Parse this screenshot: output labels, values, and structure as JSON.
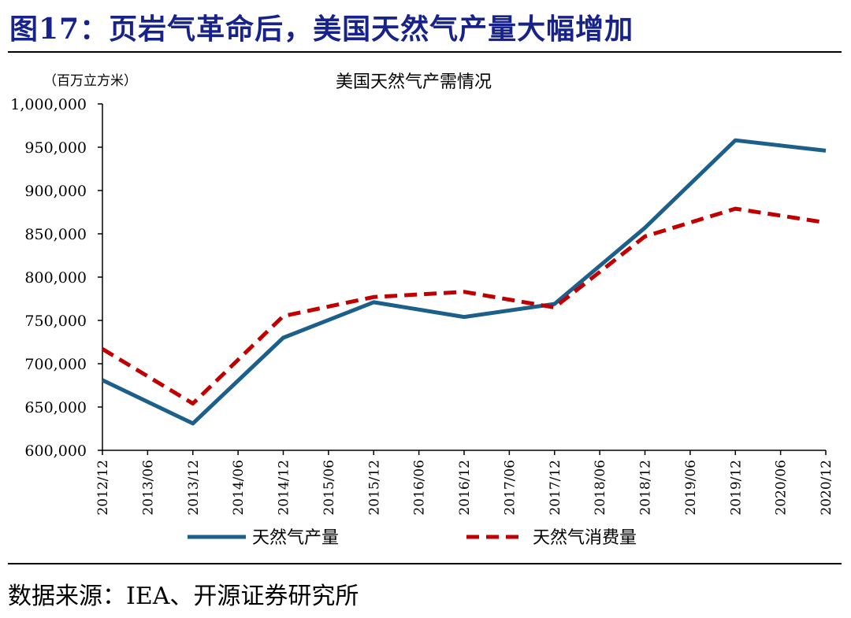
{
  "figure": {
    "title": "图17：页岩气革命后，美国天然气产量大幅增加",
    "source": "数据来源：IEA、开源证券研究所"
  },
  "colors": {
    "title": "#17238a",
    "production": "#1b5f8a",
    "consumption": "#c00000"
  },
  "chart_data": {
    "type": "line",
    "title": "美国天然气产需情况",
    "unit_label": "（百万立方米）",
    "x": [
      "2012/12",
      "2013/06",
      "2013/12",
      "2014/06",
      "2014/12",
      "2015/06",
      "2015/12",
      "2016/06",
      "2016/12",
      "2017/06",
      "2017/12",
      "2018/06",
      "2018/12",
      "2019/06",
      "2019/12",
      "2020/06",
      "2020/12"
    ],
    "yticks": [
      "1,000,000",
      "950,000",
      "900,000",
      "850,000",
      "800,000",
      "750,000",
      "700,000",
      "650,000",
      "600,000"
    ],
    "ylim": [
      600000,
      1000000
    ],
    "series": [
      {
        "name": "天然气产量",
        "style": "solid",
        "color": "#1b5f8a",
        "points": [
          [
            "2012/12",
            681000
          ],
          [
            "2013/12",
            631000
          ],
          [
            "2014/12",
            730000
          ],
          [
            "2015/12",
            771000
          ],
          [
            "2016/12",
            754000
          ],
          [
            "2017/12",
            769000
          ],
          [
            "2018/12",
            857000
          ],
          [
            "2019/12",
            958000
          ],
          [
            "2020/12",
            946000
          ]
        ]
      },
      {
        "name": "天然气消费量",
        "style": "dashed",
        "color": "#c00000",
        "points": [
          [
            "2012/12",
            717000
          ],
          [
            "2013/12",
            654000
          ],
          [
            "2014/12",
            755000
          ],
          [
            "2015/12",
            777000
          ],
          [
            "2016/12",
            783000
          ],
          [
            "2017/12",
            765000
          ],
          [
            "2018/12",
            847000
          ],
          [
            "2019/12",
            879000
          ],
          [
            "2020/12",
            863000
          ]
        ]
      }
    ],
    "legend": "bottom",
    "grid": false
  }
}
